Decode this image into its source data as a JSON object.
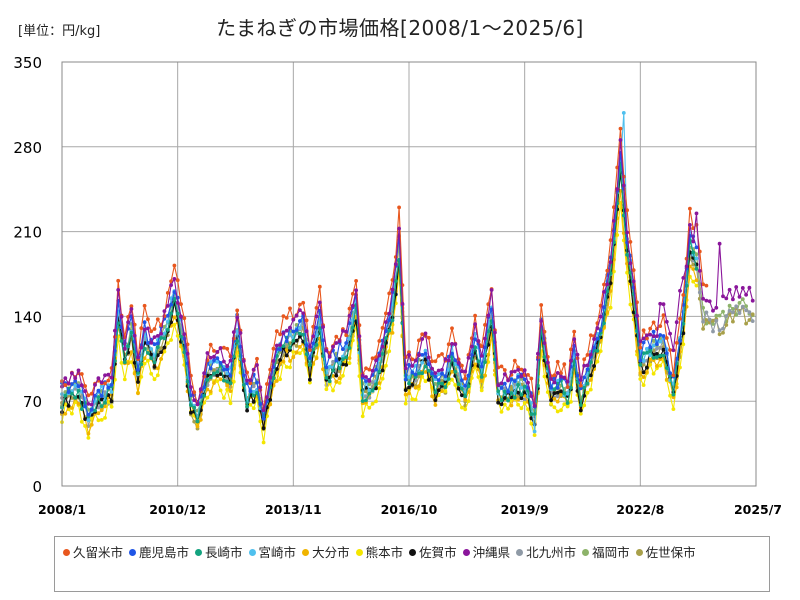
{
  "chart_data": {
    "type": "line",
    "title": "たまねぎの市場価格[2008/1～2025/6]",
    "unit_label": "[単位：円/kg]",
    "x_range": [
      "2008/1",
      "2025/7"
    ],
    "x_ticks": [
      "2008/1",
      "2010/12",
      "2013/11",
      "2016/10",
      "2019/9",
      "2022/8",
      "2025/7"
    ],
    "ylim": [
      0,
      350
    ],
    "y_ticks": [
      0,
      70,
      140,
      210,
      280,
      350
    ],
    "grid": true,
    "legend_position": "bottom",
    "series": [
      {
        "name": "久留米市",
        "color": "#e8571e",
        "start": "2008/1",
        "end": "2024/4"
      },
      {
        "name": "鹿児島市",
        "color": "#1f55e6",
        "start": "2008/1",
        "end": "2024/1"
      },
      {
        "name": "長崎市",
        "color": "#14a37f",
        "start": "2008/1",
        "end": "2024/1"
      },
      {
        "name": "宮崎市",
        "color": "#4fc0ee",
        "start": "2008/1",
        "end": "2024/1"
      },
      {
        "name": "大分市",
        "color": "#f0b400",
        "start": "2008/1",
        "end": "2024/1"
      },
      {
        "name": "熊本市",
        "color": "#f4e600",
        "start": "2008/1",
        "end": "2024/1"
      },
      {
        "name": "佐賀市",
        "color": "#111111",
        "start": "2008/1",
        "end": "2024/1"
      },
      {
        "name": "沖縄県",
        "color": "#8a169b",
        "start": "2008/1",
        "end": "2025/6"
      },
      {
        "name": "北九州市",
        "color": "#8f9aa6",
        "start": "2008/1",
        "end": "2025/6"
      },
      {
        "name": "福岡市",
        "color": "#8db36a",
        "start": "2008/1",
        "end": "2025/6"
      },
      {
        "name": "佐世保市",
        "color": "#a8a04a",
        "start": "2008/1",
        "end": "2025/6"
      }
    ],
    "base_profile": [
      [
        "2008/1",
        75
      ],
      [
        "2008/6",
        82
      ],
      [
        "2008/9",
        60
      ],
      [
        "2009/1",
        76
      ],
      [
        "2009/4",
        80
      ],
      [
        "2009/6",
        147
      ],
      [
        "2009/8",
        110
      ],
      [
        "2009/10",
        130
      ],
      [
        "2009/12",
        95
      ],
      [
        "2010/2",
        125
      ],
      [
        "2010/5",
        110
      ],
      [
        "2010/8",
        128
      ],
      [
        "2010/11",
        160
      ],
      [
        "2011/2",
        120
      ],
      [
        "2011/4",
        72
      ],
      [
        "2011/6",
        60
      ],
      [
        "2011/9",
        95
      ],
      [
        "2012/1",
        100
      ],
      [
        "2012/4",
        92
      ],
      [
        "2012/6",
        130
      ],
      [
        "2012/9",
        75
      ],
      [
        "2012/12",
        85
      ],
      [
        "2013/2",
        55
      ],
      [
        "2013/5",
        100
      ],
      [
        "2013/8",
        120
      ],
      [
        "2013/11",
        125
      ],
      [
        "2014/2",
        135
      ],
      [
        "2014/4",
        100
      ],
      [
        "2014/7",
        140
      ],
      [
        "2014/9",
        95
      ],
      [
        "2014/12",
        105
      ],
      [
        "2015/3",
        115
      ],
      [
        "2015/6",
        150
      ],
      [
        "2015/8",
        80
      ],
      [
        "2015/11",
        85
      ],
      [
        "2016/2",
        110
      ],
      [
        "2016/5",
        150
      ],
      [
        "2016/7",
        200
      ],
      [
        "2016/9",
        90
      ],
      [
        "2016/12",
        95
      ],
      [
        "2017/3",
        110
      ],
      [
        "2017/6",
        85
      ],
      [
        "2017/9",
        90
      ],
      [
        "2017/11",
        110
      ],
      [
        "2018/3",
        78
      ],
      [
        "2018/6",
        120
      ],
      [
        "2018/8",
        95
      ],
      [
        "2018/11",
        145
      ],
      [
        "2019/1",
        80
      ],
      [
        "2019/4",
        80
      ],
      [
        "2019/7",
        85
      ],
      [
        "2019/10",
        80
      ],
      [
        "2019/12",
        58
      ],
      [
        "2020/2",
        130
      ],
      [
        "2020/5",
        80
      ],
      [
        "2020/8",
        85
      ],
      [
        "2020/10",
        75
      ],
      [
        "2020/12",
        110
      ],
      [
        "2021/2",
        75
      ],
      [
        "2021/5",
        105
      ],
      [
        "2021/8",
        130
      ],
      [
        "2021/11",
        180
      ],
      [
        "2022/2",
        270
      ],
      [
        "2022/4",
        200
      ],
      [
        "2022/6",
        160
      ],
      [
        "2022/8",
        105
      ],
      [
        "2022/11",
        115
      ],
      [
        "2023/3",
        120
      ],
      [
        "2023/6",
        80
      ],
      [
        "2023/9",
        140
      ],
      [
        "2023/11",
        205
      ],
      [
        "2024/1",
        190
      ],
      [
        "2024/3",
        145
      ],
      [
        "2024/6",
        140
      ],
      [
        "2024/9",
        140
      ],
      [
        "2024/12",
        150
      ],
      [
        "2025/3",
        150
      ],
      [
        "2025/6",
        145
      ]
    ],
    "notable_points": [
      {
        "series": "宮崎市",
        "x": "2022/3",
        "y": 308
      },
      {
        "series": "久留米市",
        "x": "2016/7",
        "y": 230
      },
      {
        "series": "久留米市",
        "x": "2010/11",
        "y": 182
      },
      {
        "series": "久留米市",
        "x": "2023/11",
        "y": 229
      },
      {
        "series": "沖縄県",
        "x": "2024/1",
        "y": 225
      },
      {
        "series": "沖縄県",
        "x": "2024/8",
        "y": 200
      },
      {
        "series": "宮崎市",
        "x": "2019/12",
        "y": 45
      },
      {
        "series": "熊本市",
        "x": "2019/12",
        "y": 42
      }
    ]
  }
}
